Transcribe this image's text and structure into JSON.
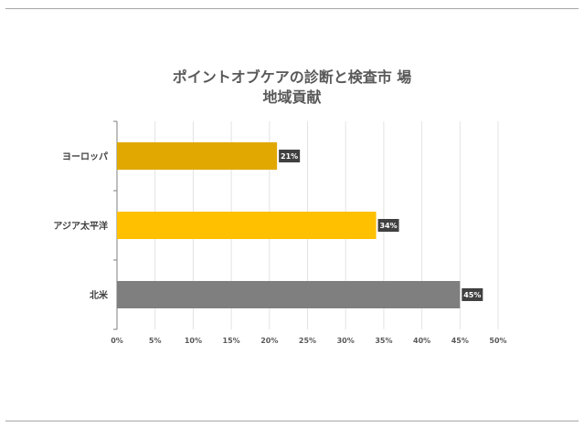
{
  "chart_data": {
    "type": "bar",
    "orientation": "horizontal",
    "title_line1": "ポイントオブケアの診断と検査市 場",
    "title_line2": "地域貢献",
    "categories": [
      "ヨーロッパ",
      "アジア太平洋",
      "北米"
    ],
    "values": [
      21,
      34,
      45
    ],
    "data_labels": [
      "21%",
      "34%",
      "45%"
    ],
    "colors": [
      "#e0a800",
      "#ffc000",
      "#7f7f7f"
    ],
    "xlim": [
      0,
      50
    ],
    "x_ticks": [
      "0%",
      "5%",
      "10%",
      "15%",
      "20%",
      "25%",
      "30%",
      "35%",
      "40%",
      "45%",
      "50%"
    ],
    "grid": true,
    "legend": "none"
  }
}
